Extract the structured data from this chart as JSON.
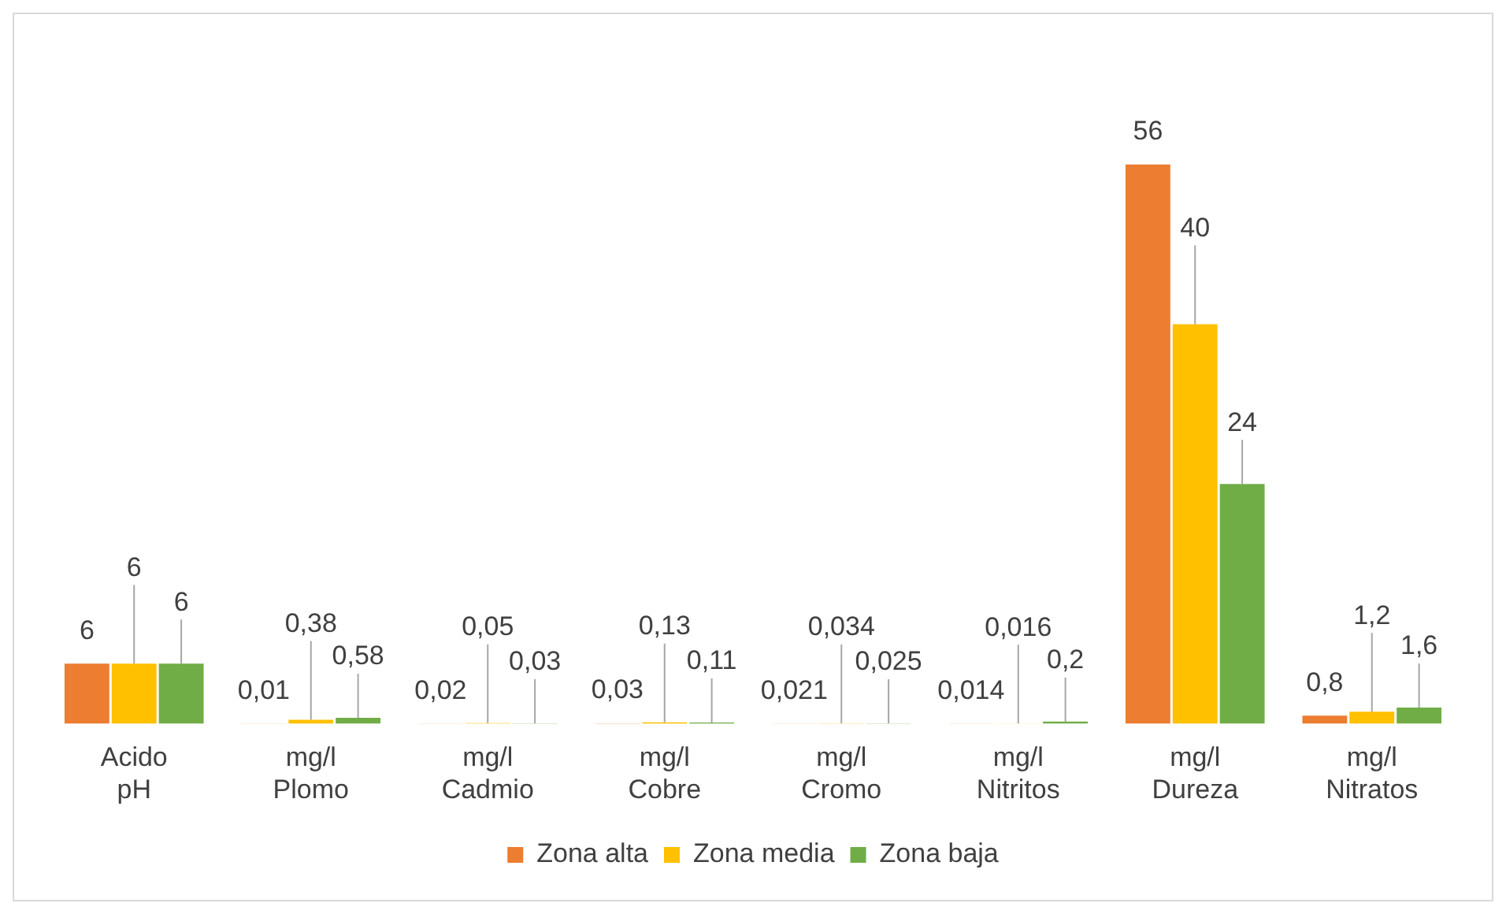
{
  "chart_data": {
    "type": "bar",
    "categories": [
      "Acido\npH",
      "mg/l\nPlomo",
      "mg/l\nCadmio",
      "mg/l\nCobre",
      "mg/l\nCromo",
      "mg/l\nNitritos",
      "mg/l\nDureza",
      "mg/l\nNitratos"
    ],
    "series": [
      {
        "name": "Zona alta",
        "color": "#ed7d31",
        "values": [
          6,
          0.01,
          0.02,
          0.03,
          0.021,
          0.014,
          56,
          0.8
        ],
        "value_labels": [
          "6",
          "0,01",
          "0,02",
          "0,03",
          "0,021",
          "0,014",
          "56",
          "0,8"
        ]
      },
      {
        "name": "Zona media",
        "color": "#ffc000",
        "values": [
          6,
          0.38,
          0.05,
          0.13,
          0.034,
          0.016,
          40,
          1.2
        ],
        "value_labels": [
          "6",
          "0,38",
          "0,05",
          "0,13",
          "0,034",
          "0,016",
          "40",
          "1,2"
        ]
      },
      {
        "name": "Zona baja",
        "color": "#70ad47",
        "values": [
          6,
          0.58,
          0.03,
          0.11,
          0.025,
          0.2,
          24,
          1.6
        ],
        "value_labels": [
          "6",
          "0,58",
          "0,03",
          "0,11",
          "0,025",
          "0,2",
          "24",
          "1,6"
        ]
      }
    ],
    "legend": "bottom",
    "grid": false
  }
}
